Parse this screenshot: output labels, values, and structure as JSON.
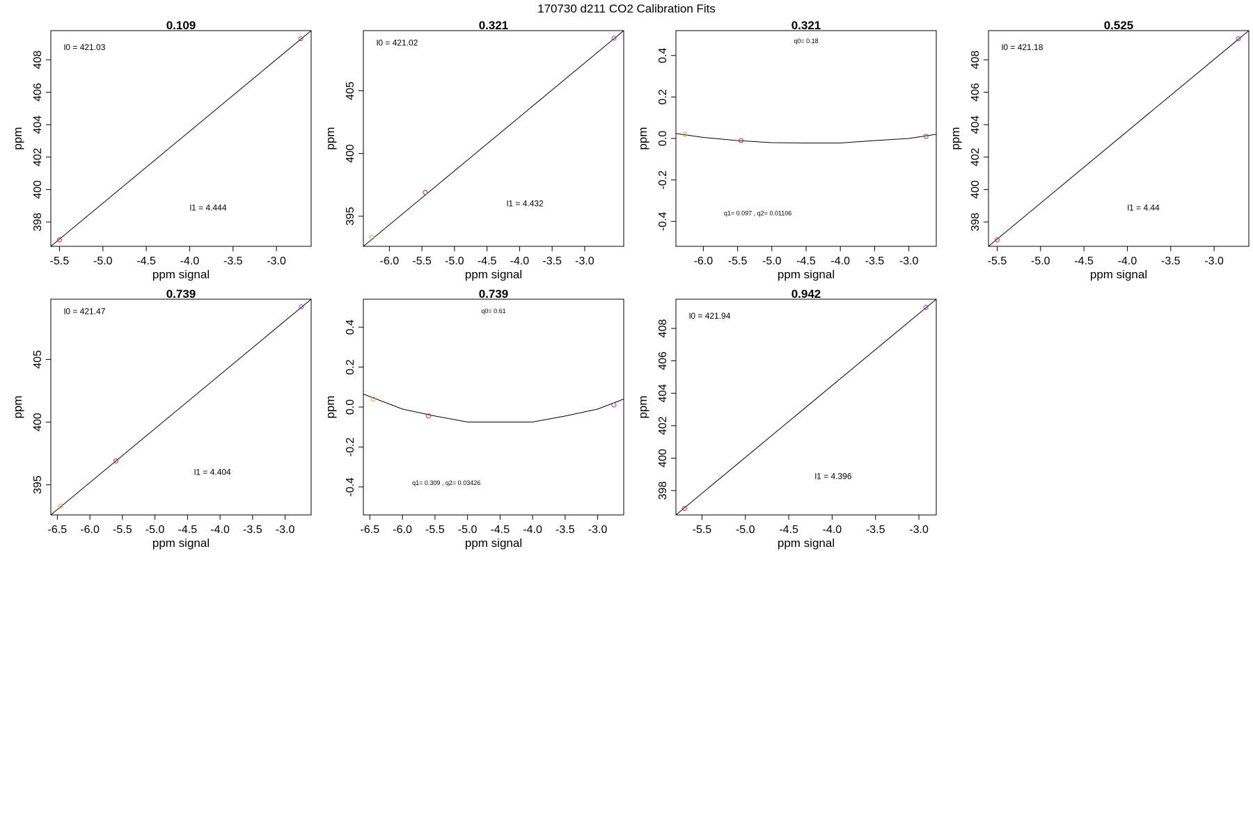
{
  "page_title": "170730   d211   CO2 Calibration Fits",
  "chart_data": [
    {
      "type": "scatter",
      "title": "0.109",
      "xlabel": "ppm signal",
      "ylabel": "ppm",
      "xlim": [
        -5.6,
        -2.6
      ],
      "ylim": [
        396.5,
        409.8
      ],
      "xticks": [
        "-5.5",
        "-5.0",
        "-4.5",
        "-4.0",
        "-3.5",
        "-3.0"
      ],
      "yticks": [
        "398",
        "400",
        "402",
        "404",
        "406",
        "408"
      ],
      "points": [
        {
          "x": -5.5,
          "y": 396.9,
          "color": "#dd2222"
        },
        {
          "x": -2.72,
          "y": 409.3,
          "color": "#9933cc"
        }
      ],
      "fit": {
        "type": "line",
        "x0": -5.6,
        "y0": 396.5,
        "x1": -2.6,
        "y1": 409.8
      },
      "annotations": [
        {
          "text": "l0 =  421.03",
          "x": -5.45,
          "y": 408.6
        },
        {
          "text": "l1 =  4.444",
          "x": -4.0,
          "y": 398.7
        }
      ]
    },
    {
      "type": "scatter",
      "title": "0.321",
      "xlabel": "ppm signal",
      "ylabel": "ppm",
      "xlim": [
        -6.4,
        -2.4
      ],
      "ylim": [
        392.6,
        409.8
      ],
      "xticks": [
        "-6.0",
        "-5.5",
        "-5.0",
        "-4.5",
        "-4.0",
        "-3.5",
        "-3.0"
      ],
      "yticks": [
        "395",
        "400",
        "405"
      ],
      "points": [
        {
          "x": -6.27,
          "y": 393.3,
          "color": "#e6a23c"
        },
        {
          "x": -5.45,
          "y": 396.9,
          "color": "#dd2222"
        },
        {
          "x": -2.55,
          "y": 409.2,
          "color": "#9933cc"
        }
      ],
      "fit": {
        "type": "line",
        "x0": -6.4,
        "y0": 392.6,
        "x1": -2.4,
        "y1": 409.8
      },
      "annotations": [
        {
          "text": "l0 =  421.02",
          "x": -6.2,
          "y": 408.6
        },
        {
          "text": "l1 =  4.432",
          "x": -4.2,
          "y": 395.8
        }
      ]
    },
    {
      "type": "scatter",
      "title": "0.321",
      "xlabel": "ppm signal",
      "ylabel": "ppm",
      "xlim": [
        -6.4,
        -2.6
      ],
      "ylim": [
        -0.52,
        0.52
      ],
      "xticks": [
        "-6.0",
        "-5.5",
        "-5.0",
        "-4.5",
        "-4.0",
        "-3.5",
        "-3.0"
      ],
      "yticks": [
        "-0.4",
        "-0.2",
        "0.0",
        "0.2",
        "0.4"
      ],
      "points": [
        {
          "x": -6.27,
          "y": 0.02,
          "color": "#e6a23c"
        },
        {
          "x": -5.45,
          "y": -0.01,
          "color": "#dd2222"
        },
        {
          "x": -2.75,
          "y": 0.01,
          "color": "#9933cc"
        }
      ],
      "fit": {
        "type": "curve",
        "x": [
          -6.4,
          -6.0,
          -5.5,
          -5.0,
          -4.5,
          -4.0,
          -3.5,
          -3.0,
          -2.6
        ],
        "y": [
          0.024,
          0.005,
          -0.01,
          -0.02,
          -0.022,
          -0.022,
          -0.01,
          0.0,
          0.02
        ]
      },
      "annotations": [
        {
          "text": "q0= 0.18",
          "x": -4.5,
          "y": 0.46
        },
        {
          "text": "q1= 0.097 , q2= 0.01106",
          "x": -5.7,
          "y": -0.37
        }
      ]
    },
    {
      "type": "scatter",
      "title": "0.525",
      "xlabel": "ppm signal",
      "ylabel": "ppm",
      "xlim": [
        -5.6,
        -2.6
      ],
      "ylim": [
        396.5,
        409.8
      ],
      "xticks": [
        "-5.5",
        "-5.0",
        "-4.5",
        "-4.0",
        "-3.5",
        "-3.0"
      ],
      "yticks": [
        "398",
        "400",
        "402",
        "404",
        "406",
        "408"
      ],
      "points": [
        {
          "x": -5.5,
          "y": 396.9,
          "color": "#dd2222"
        },
        {
          "x": -2.72,
          "y": 409.3,
          "color": "#9933cc"
        }
      ],
      "fit": {
        "type": "line",
        "x0": -5.6,
        "y0": 396.5,
        "x1": -2.6,
        "y1": 409.8
      },
      "annotations": [
        {
          "text": "l0 =  421.18",
          "x": -5.45,
          "y": 408.6
        },
        {
          "text": "l1 =  4.44",
          "x": -4.0,
          "y": 398.7
        }
      ]
    },
    {
      "type": "scatter",
      "title": "0.739",
      "xlabel": "ppm signal",
      "ylabel": "ppm",
      "xlim": [
        -6.6,
        -2.6
      ],
      "ylim": [
        392.6,
        409.8
      ],
      "xticks": [
        "-6.5",
        "-6.0",
        "-5.5",
        "-5.0",
        "-4.5",
        "-4.0",
        "-3.5",
        "-3.0"
      ],
      "yticks": [
        "395",
        "400",
        "405"
      ],
      "points": [
        {
          "x": -6.45,
          "y": 393.3,
          "color": "#e6a23c"
        },
        {
          "x": -5.6,
          "y": 396.9,
          "color": "#dd2222"
        },
        {
          "x": -2.75,
          "y": 409.2,
          "color": "#9933cc"
        }
      ],
      "fit": {
        "type": "line",
        "x0": -6.6,
        "y0": 392.6,
        "x1": -2.6,
        "y1": 409.8
      },
      "annotations": [
        {
          "text": "l0 =  421.47",
          "x": -6.4,
          "y": 408.6
        },
        {
          "text": "l1 =  4.404",
          "x": -4.4,
          "y": 395.8
        }
      ]
    },
    {
      "type": "scatter",
      "title": "0.739",
      "xlabel": "ppm signal",
      "ylabel": "ppm",
      "xlim": [
        -6.6,
        -2.6
      ],
      "ylim": [
        -0.54,
        0.54
      ],
      "xticks": [
        "-6.5",
        "-6.0",
        "-5.5",
        "-5.0",
        "-4.5",
        "-4.0",
        "-3.5",
        "-3.0"
      ],
      "yticks": [
        "-0.4",
        "-0.2",
        "0.0",
        "0.2",
        "0.4"
      ],
      "points": [
        {
          "x": -6.45,
          "y": 0.04,
          "color": "#e6a23c"
        },
        {
          "x": -5.6,
          "y": -0.045,
          "color": "#dd2222"
        },
        {
          "x": -2.75,
          "y": 0.01,
          "color": "#9933cc"
        }
      ],
      "fit": {
        "type": "curve",
        "x": [
          -6.6,
          -6.0,
          -5.5,
          -5.0,
          -4.5,
          -4.0,
          -3.5,
          -3.0,
          -2.6
        ],
        "y": [
          0.065,
          -0.01,
          -0.045,
          -0.075,
          -0.075,
          -0.075,
          -0.045,
          -0.01,
          0.04
        ]
      },
      "annotations": [
        {
          "text": "q0= 0.61",
          "x": -4.6,
          "y": 0.47
        },
        {
          "text": "q1= 0.309 , q2= 0.03426",
          "x": -5.85,
          "y": -0.39
        }
      ]
    },
    {
      "type": "scatter",
      "title": "0.942",
      "xlabel": "ppm signal",
      "ylabel": "ppm",
      "xlim": [
        -5.8,
        -2.8
      ],
      "ylim": [
        396.5,
        409.8
      ],
      "xticks": [
        "-5.5",
        "-5.0",
        "-4.5",
        "-4.0",
        "-3.5",
        "-3.0"
      ],
      "yticks": [
        "398",
        "400",
        "402",
        "404",
        "406",
        "408"
      ],
      "points": [
        {
          "x": -5.7,
          "y": 396.9,
          "color": "#dd2222"
        },
        {
          "x": -2.92,
          "y": 409.3,
          "color": "#9933cc"
        }
      ],
      "fit": {
        "type": "line",
        "x0": -5.8,
        "y0": 396.5,
        "x1": -2.8,
        "y1": 409.8
      },
      "annotations": [
        {
          "text": "l0 =  421.94",
          "x": -5.65,
          "y": 408.6
        },
        {
          "text": "l1 =  4.396",
          "x": -4.2,
          "y": 398.7
        }
      ]
    }
  ]
}
